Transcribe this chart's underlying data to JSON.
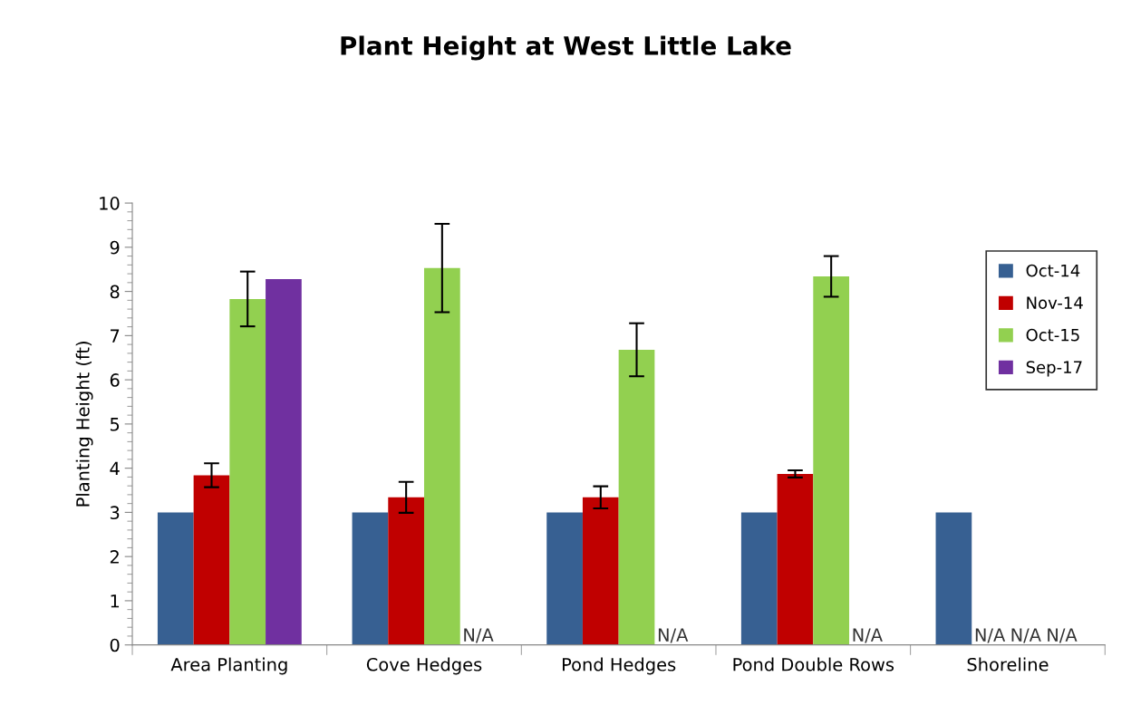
{
  "chart_data": {
    "type": "bar",
    "title": "Plant Height at West Little Lake",
    "ylabel": "Planting Height (ft)",
    "categories": [
      "Area Planting",
      "Cove Hedges",
      "Pond Hedges",
      "Pond Double Rows",
      "Shoreline"
    ],
    "series": [
      {
        "name": "Oct-14",
        "color": "#376092",
        "values": [
          3,
          3,
          3,
          3,
          3
        ]
      },
      {
        "name": "Nov-14",
        "color": "#c00000",
        "values": [
          3.84,
          3.34,
          3.34,
          3.87,
          null
        ],
        "errors": [
          0.27,
          0.35,
          0.25,
          0.08,
          null
        ],
        "value_labels": [
          null,
          null,
          null,
          null,
          "N/A"
        ]
      },
      {
        "name": "Oct-15",
        "color": "#92d050",
        "values": [
          7.83,
          8.53,
          6.68,
          8.34,
          null
        ],
        "errors": [
          0.62,
          1.0,
          0.6,
          0.46,
          null
        ],
        "value_labels": [
          null,
          null,
          null,
          null,
          "N/A"
        ]
      },
      {
        "name": "Sep-17",
        "color": "#7030a0",
        "values": [
          8.28,
          null,
          null,
          null,
          null
        ],
        "value_labels": [
          null,
          "N/A",
          "N/A",
          "N/A",
          "N/A"
        ]
      }
    ],
    "ylim": [
      0,
      10
    ],
    "yticks": [
      0,
      1,
      2,
      3,
      4,
      5,
      6,
      7,
      8,
      9,
      10
    ],
    "grid": false,
    "legend": "right"
  }
}
